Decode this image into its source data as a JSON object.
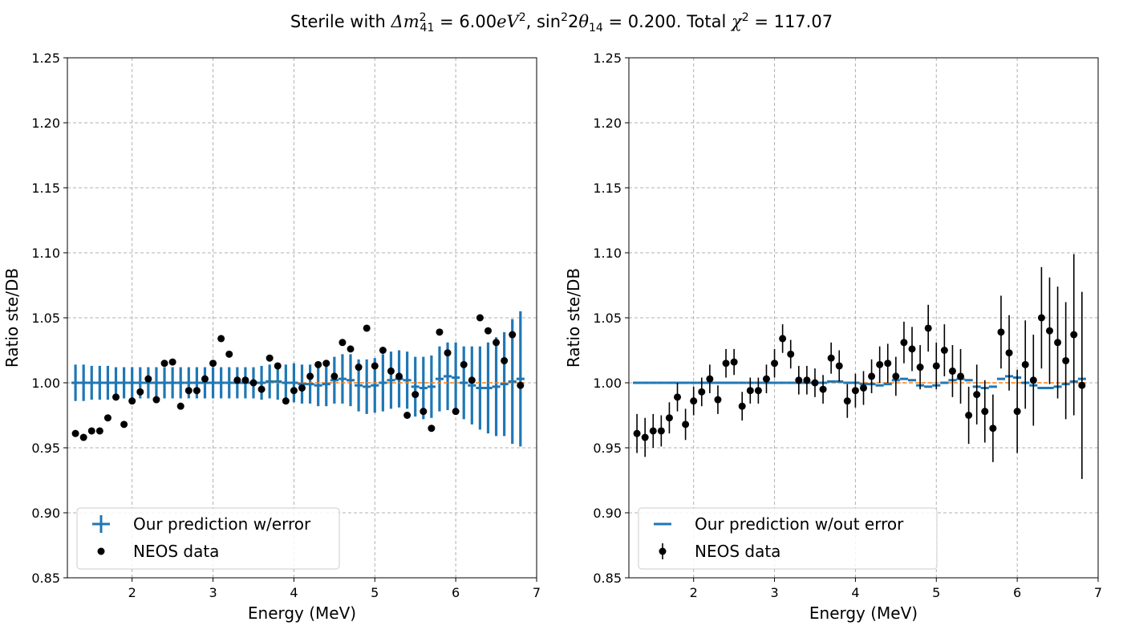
{
  "figure": {
    "title_parts": {
      "prefix": "Sterile with ",
      "dm_symbol": "Δm",
      "dm_sup": "2",
      "dm_sub": "41",
      "dm_value": " = 6.00",
      "dm_unit": "eV",
      "dm_unit_sup": "2",
      "sep": ", ",
      "sin": "sin",
      "sin_sup": "2",
      "theta_prefix": "2",
      "theta": "θ",
      "theta_sub": "14",
      "theta_value": " = 0.200. Total ",
      "chi": "χ",
      "chi_sup": "2",
      "chi_value": " = 117.07"
    }
  },
  "chart_data": [
    {
      "type": "scatter",
      "panel": "left",
      "xlabel": "Energy (MeV)",
      "ylabel": "Ratio ste/DB",
      "xlim": [
        1.2,
        7.0
      ],
      "ylim": [
        0.85,
        1.25
      ],
      "xticks": [
        "2",
        "3",
        "4",
        "5",
        "6",
        "7"
      ],
      "yticks": [
        "0.85",
        "0.90",
        "0.95",
        "1.00",
        "1.05",
        "1.10",
        "1.15",
        "1.20",
        "1.25"
      ],
      "grid": true,
      "legend_position": "lower-left",
      "legend": [
        "Our prediction w/error",
        "NEOS data"
      ],
      "colors": {
        "prediction": "#1f77b4",
        "reference": "#ff7f0e",
        "data": "#000000"
      },
      "x": [
        1.3,
        1.4,
        1.5,
        1.6,
        1.7,
        1.8,
        1.9,
        2.0,
        2.1,
        2.2,
        2.3,
        2.4,
        2.5,
        2.6,
        2.7,
        2.8,
        2.9,
        3.0,
        3.1,
        3.2,
        3.3,
        3.4,
        3.5,
        3.6,
        3.7,
        3.8,
        3.9,
        4.0,
        4.1,
        4.2,
        4.3,
        4.4,
        4.5,
        4.6,
        4.7,
        4.8,
        4.9,
        5.0,
        5.1,
        5.2,
        5.3,
        5.4,
        5.5,
        5.6,
        5.7,
        5.8,
        5.9,
        6.0,
        6.1,
        6.2,
        6.3,
        6.4,
        6.5,
        6.6,
        6.7,
        6.8
      ],
      "series": [
        {
          "name": "Our prediction w/error",
          "style": "errorbar-step",
          "values": [
            1.0,
            1.0,
            1.0,
            1.0,
            1.0,
            1.0,
            1.0,
            1.0,
            1.0,
            1.0,
            1.0,
            1.0,
            1.0,
            1.0,
            1.0,
            1.0,
            1.0,
            1.0,
            1.0,
            1.0,
            1.0,
            1.0,
            1.0,
            1.0,
            1.001,
            1.001,
            1.0,
            1.0,
            0.999,
            0.999,
            0.998,
            0.999,
            1.002,
            1.003,
            1.002,
            0.998,
            0.997,
            0.998,
            1.0,
            1.002,
            1.003,
            1.002,
            0.997,
            0.996,
            0.997,
            1.003,
            1.005,
            1.004,
            1.0,
            0.998,
            0.996,
            0.996,
            0.997,
            0.999,
            1.001,
            1.003
          ],
          "errors": [
            0.014,
            0.014,
            0.013,
            0.013,
            0.013,
            0.012,
            0.012,
            0.012,
            0.012,
            0.012,
            0.012,
            0.012,
            0.012,
            0.012,
            0.012,
            0.012,
            0.012,
            0.012,
            0.012,
            0.012,
            0.012,
            0.012,
            0.012,
            0.013,
            0.013,
            0.014,
            0.014,
            0.015,
            0.015,
            0.015,
            0.016,
            0.017,
            0.018,
            0.019,
            0.02,
            0.02,
            0.021,
            0.021,
            0.022,
            0.022,
            0.022,
            0.022,
            0.023,
            0.024,
            0.024,
            0.025,
            0.026,
            0.027,
            0.028,
            0.03,
            0.032,
            0.035,
            0.038,
            0.04,
            0.048,
            0.052
          ]
        },
        {
          "name": "NEOS data",
          "style": "points",
          "values": [
            0.961,
            0.958,
            0.963,
            0.963,
            0.973,
            0.989,
            0.968,
            0.986,
            0.993,
            1.003,
            0.987,
            1.015,
            1.016,
            0.982,
            0.994,
            0.994,
            1.003,
            1.015,
            1.034,
            1.022,
            1.002,
            1.002,
            1.0,
            0.995,
            1.019,
            1.013,
            0.986,
            0.994,
            0.996,
            1.005,
            1.014,
            1.015,
            1.005,
            1.031,
            1.026,
            1.012,
            1.042,
            1.013,
            1.025,
            1.009,
            1.005,
            0.975,
            0.991,
            0.978,
            0.965,
            1.039,
            1.023,
            0.978,
            1.014,
            1.002,
            1.05,
            1.04,
            1.031,
            1.017,
            1.037,
            0.998
          ]
        },
        {
          "style": "reference-line",
          "values": [
            1.0,
            1.0
          ]
        }
      ]
    },
    {
      "type": "scatter",
      "panel": "right",
      "xlabel": "Energy (MeV)",
      "ylabel": "Ratio ste/DB",
      "xlim": [
        1.2,
        7.0
      ],
      "ylim": [
        0.85,
        1.25
      ],
      "xticks": [
        "2",
        "3",
        "4",
        "5",
        "6",
        "7"
      ],
      "yticks": [
        "0.85",
        "0.90",
        "0.95",
        "1.00",
        "1.05",
        "1.10",
        "1.15",
        "1.20",
        "1.25"
      ],
      "grid": true,
      "legend_position": "lower-left",
      "legend": [
        "Our prediction w/out error",
        "NEOS data"
      ],
      "colors": {
        "prediction": "#1f77b4",
        "reference": "#ff7f0e",
        "data": "#000000"
      },
      "x": [
        1.3,
        1.4,
        1.5,
        1.6,
        1.7,
        1.8,
        1.9,
        2.0,
        2.1,
        2.2,
        2.3,
        2.4,
        2.5,
        2.6,
        2.7,
        2.8,
        2.9,
        3.0,
        3.1,
        3.2,
        3.3,
        3.4,
        3.5,
        3.6,
        3.7,
        3.8,
        3.9,
        4.0,
        4.1,
        4.2,
        4.3,
        4.4,
        4.5,
        4.6,
        4.7,
        4.8,
        4.9,
        5.0,
        5.1,
        5.2,
        5.3,
        5.4,
        5.5,
        5.6,
        5.7,
        5.8,
        5.9,
        6.0,
        6.1,
        6.2,
        6.3,
        6.4,
        6.5,
        6.6,
        6.7,
        6.8
      ],
      "series": [
        {
          "name": "Our prediction w/out error",
          "style": "step",
          "values": [
            1.0,
            1.0,
            1.0,
            1.0,
            1.0,
            1.0,
            1.0,
            1.0,
            1.0,
            1.0,
            1.0,
            1.0,
            1.0,
            1.0,
            1.0,
            1.0,
            1.0,
            1.0,
            1.0,
            1.0,
            1.0,
            1.0,
            1.0,
            1.0,
            1.001,
            1.001,
            1.0,
            1.0,
            0.999,
            0.999,
            0.998,
            0.999,
            1.002,
            1.003,
            1.002,
            0.998,
            0.997,
            0.998,
            1.0,
            1.002,
            1.003,
            1.002,
            0.997,
            0.996,
            0.997,
            1.003,
            1.005,
            1.004,
            1.0,
            0.998,
            0.996,
            0.996,
            0.997,
            0.999,
            1.001,
            1.003
          ]
        },
        {
          "name": "NEOS data",
          "style": "points-with-errors",
          "values": [
            0.961,
            0.958,
            0.963,
            0.963,
            0.973,
            0.989,
            0.968,
            0.986,
            0.993,
            1.003,
            0.987,
            1.015,
            1.016,
            0.982,
            0.994,
            0.994,
            1.003,
            1.015,
            1.034,
            1.022,
            1.002,
            1.002,
            1.0,
            0.995,
            1.019,
            1.013,
            0.986,
            0.994,
            0.996,
            1.005,
            1.014,
            1.015,
            1.005,
            1.031,
            1.026,
            1.012,
            1.042,
            1.013,
            1.025,
            1.009,
            1.005,
            0.975,
            0.991,
            0.978,
            0.965,
            1.039,
            1.023,
            0.978,
            1.014,
            1.002,
            1.05,
            1.04,
            1.031,
            1.017,
            1.037,
            0.998
          ],
          "errors": [
            0.015,
            0.015,
            0.013,
            0.012,
            0.012,
            0.011,
            0.012,
            0.011,
            0.011,
            0.011,
            0.011,
            0.011,
            0.01,
            0.011,
            0.01,
            0.01,
            0.011,
            0.011,
            0.011,
            0.011,
            0.011,
            0.011,
            0.011,
            0.011,
            0.012,
            0.012,
            0.013,
            0.013,
            0.013,
            0.013,
            0.014,
            0.015,
            0.015,
            0.016,
            0.017,
            0.017,
            0.018,
            0.018,
            0.02,
            0.02,
            0.021,
            0.022,
            0.023,
            0.024,
            0.026,
            0.028,
            0.029,
            0.032,
            0.034,
            0.035,
            0.039,
            0.041,
            0.043,
            0.045,
            0.062,
            0.072
          ]
        },
        {
          "style": "reference-line",
          "values": [
            1.0,
            1.0
          ]
        }
      ]
    }
  ]
}
